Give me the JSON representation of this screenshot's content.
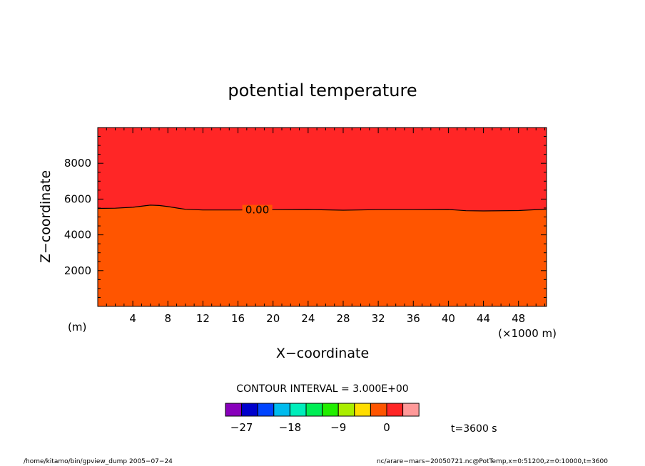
{
  "chart_data": {
    "type": "contour",
    "title": "potential temperature",
    "xlabel": "X−coordinate",
    "ylabel": "Z−coordinate",
    "x_unit": "(×1000 m)",
    "y_unit": "(m)",
    "xlim": [
      0,
      51.2
    ],
    "ylim": [
      0,
      10000
    ],
    "x_ticks": [
      4,
      8,
      12,
      16,
      20,
      24,
      28,
      32,
      36,
      40,
      44,
      48
    ],
    "y_ticks": [
      2000,
      4000,
      6000,
      8000
    ],
    "regions": [
      {
        "name": "upper",
        "color": "#ff2626"
      },
      {
        "name": "lower",
        "color": "#ff5500"
      }
    ],
    "contour": {
      "label": "0.00",
      "level": 0.0,
      "x": [
        0,
        2,
        4,
        5,
        6,
        7,
        8,
        9,
        10,
        12,
        16,
        20,
        24,
        28,
        32,
        36,
        40,
        42,
        44,
        48,
        51.2
      ],
      "z": [
        5480,
        5490,
        5540,
        5600,
        5660,
        5640,
        5580,
        5500,
        5430,
        5390,
        5390,
        5410,
        5420,
        5380,
        5410,
        5410,
        5420,
        5350,
        5340,
        5360,
        5440
      ]
    },
    "contour_interval": "CONTOUR INTERVAL = 3.000E+00",
    "colorbar": {
      "colors": [
        "#8800bb",
        "#0000cc",
        "#0044ff",
        "#00bbee",
        "#00eebb",
        "#00ee55",
        "#22ee00",
        "#aaee00",
        "#ffdd00",
        "#ff5500",
        "#ff2626",
        "#ff9999"
      ],
      "tick_labels": [
        "−27",
        "−18",
        "−9",
        "0"
      ]
    },
    "time_label": "t=3600 s",
    "footer_left": "/home/kitamo/bin/gpview_dump   2005−07−24",
    "footer_right": "nc/arare−mars−20050721.nc@PotTemp,x=0:51200,z=0:10000,t=3600"
  }
}
